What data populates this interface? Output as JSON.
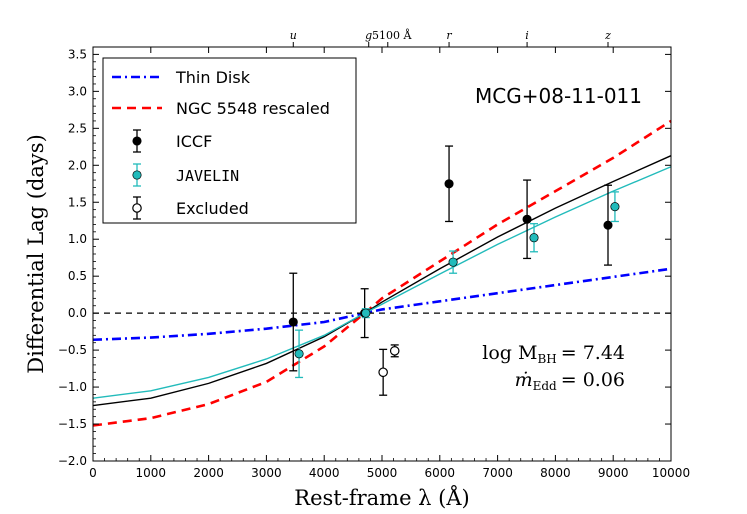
{
  "chart_data": {
    "type": "scatter",
    "title": "",
    "xlabel": "Rest-frame λ (Å)",
    "ylabel": "Differential Lag (days)",
    "xlim": [
      0,
      10000
    ],
    "ylim": [
      -2.0,
      3.6
    ],
    "x_ticks": [
      0,
      1000,
      2000,
      3000,
      4000,
      5000,
      6000,
      7000,
      8000,
      9000,
      10000
    ],
    "x_tick_labels": [
      "0",
      "1000",
      "2000",
      "3000",
      "4000",
      "5000",
      "6000",
      "7000",
      "8000",
      "9000",
      "10000"
    ],
    "y_ticks": [
      -2.0,
      -1.5,
      -1.0,
      -0.5,
      0.0,
      0.5,
      1.0,
      1.5,
      2.0,
      2.5,
      3.0,
      3.5
    ],
    "y_tick_labels": [
      "−2.0",
      "−1.5",
      "−1.0",
      "−0.5",
      "0.0",
      "0.5",
      "1.0",
      "1.5",
      "2.0",
      "2.5",
      "3.0",
      "3.5"
    ],
    "top_bands": [
      {
        "label": "u",
        "x": 3465
      },
      {
        "label": "g",
        "x": 4770
      },
      {
        "label": "5100 Å",
        "x": 5100
      },
      {
        "label": "r",
        "x": 6160
      },
      {
        "label": "i",
        "x": 7510
      },
      {
        "label": "z",
        "x": 8910
      }
    ],
    "object_name": "MCG+08-11-011",
    "params": {
      "mass_label": "log M",
      "mass_sub": "BH",
      "mass_value": "= 7.44",
      "mdot_label": "ṁ",
      "mdot_sub": "Edd",
      "mdot_value": "= 0.06"
    },
    "legend": [
      {
        "label": "Thin Disk",
        "style": "dashdot",
        "color": "#0000ff"
      },
      {
        "label": "NGC 5548 rescaled",
        "style": "dashed",
        "color": "#ff0000"
      },
      {
        "label": "ICCF",
        "style": "marker-filled",
        "color": "#000000"
      },
      {
        "label": "JAVELIN",
        "style": "marker-filled",
        "color": "#22bbbb"
      },
      {
        "label": "Excluded",
        "style": "marker-open",
        "color": "#000000"
      }
    ],
    "series": [
      {
        "name": "ICCF",
        "color": "#000000",
        "x": [
          3465,
          4700,
          6160,
          7510,
          8910
        ],
        "y": [
          -0.12,
          0.0,
          1.75,
          1.27,
          1.19
        ],
        "yerr": [
          0.66,
          0.33,
          0.51,
          0.53,
          0.54
        ]
      },
      {
        "name": "JAVELIN",
        "color": "#22bbbb",
        "x": [
          3565,
          4720,
          6230,
          7630,
          9030
        ],
        "y": [
          -0.55,
          0.0,
          0.69,
          1.02,
          1.44
        ],
        "yerr": [
          0.32,
          0.06,
          0.15,
          0.19,
          0.2
        ]
      },
      {
        "name": "Excluded",
        "color": "#000000",
        "open": true,
        "x": [
          5020,
          5220
        ],
        "y": [
          -0.8,
          -0.51
        ],
        "yerr": [
          0.31,
          0.08
        ]
      },
      {
        "name": "Thin Disk",
        "color": "#0000ff",
        "style": "dashdot",
        "x": [
          0,
          1000,
          2000,
          3000,
          4000,
          4700,
          5000,
          6000,
          7000,
          8000,
          9000,
          10000
        ],
        "y": [
          -0.36,
          -0.33,
          -0.28,
          -0.21,
          -0.12,
          0.0,
          0.05,
          0.16,
          0.27,
          0.38,
          0.49,
          0.6
        ]
      },
      {
        "name": "NGC 5548 rescaled",
        "color": "#ff0000",
        "style": "dashed",
        "x": [
          0,
          1000,
          2000,
          3000,
          4000,
          4700,
          5000,
          6000,
          7000,
          8000,
          9000,
          10000
        ],
        "y": [
          -1.52,
          -1.42,
          -1.23,
          -0.93,
          -0.45,
          0.0,
          0.2,
          0.7,
          1.2,
          1.65,
          2.1,
          2.6
        ]
      },
      {
        "name": "ICCF fit",
        "color": "#000000",
        "style": "solid",
        "x": [
          0,
          1000,
          2000,
          3000,
          4000,
          4700,
          5000,
          6000,
          7000,
          8000,
          9000,
          10000
        ],
        "y": [
          -1.25,
          -1.15,
          -0.95,
          -0.68,
          -0.32,
          0.0,
          0.15,
          0.6,
          1.03,
          1.42,
          1.78,
          2.13
        ]
      },
      {
        "name": "JAVELIN fit",
        "color": "#22bbbb",
        "style": "solid",
        "x": [
          0,
          1000,
          2000,
          3000,
          4000,
          4700,
          5000,
          6000,
          7000,
          8000,
          9000,
          10000
        ],
        "y": [
          -1.15,
          -1.05,
          -0.87,
          -0.62,
          -0.3,
          0.0,
          0.12,
          0.53,
          0.93,
          1.3,
          1.65,
          1.98
        ]
      }
    ]
  }
}
